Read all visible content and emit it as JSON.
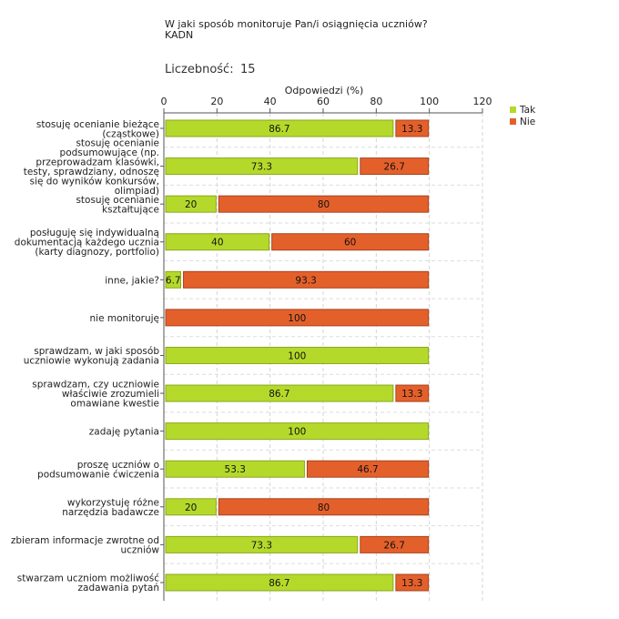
{
  "header": {
    "title_line1": "W jaki sposób monitoruje Pan/i osiągnięcia uczniów?",
    "title_line2": "KADN",
    "count_label": "Liczebność:",
    "count_value": "15"
  },
  "chart_data": {
    "type": "bar",
    "orientation": "horizontal",
    "stacked": true,
    "title": "W jaki sposób monitoruje Pan/i osiągnięcia uczniów?",
    "subtitle": "KADN",
    "xlabel": "Odpowiedzi (%)",
    "ylabel": "",
    "xlim": [
      0,
      120
    ],
    "xticks": [
      0,
      20,
      40,
      60,
      80,
      100,
      120
    ],
    "grid": true,
    "legend_position": "top-right",
    "categories": [
      [
        "stosuję ocenianie bieżące",
        "(cząstkowe)"
      ],
      [
        "stosuję ocenianie",
        "podsumowujące (np.",
        "przeprowadzam klasówki,",
        "testy, sprawdziany, odnoszę",
        "się do wyników konkursów,",
        "olimpiad)"
      ],
      [
        "stosuję ocenianie",
        "kształtujące"
      ],
      [
        "posługuję się indywidualną",
        "dokumentacją każdego ucznia",
        "(karty diagnozy, portfolio)"
      ],
      [
        "inne, jakie?"
      ],
      [
        "nie monitoruję"
      ],
      [
        "sprawdzam, w jaki sposób",
        "uczniowie wykonują zadania"
      ],
      [
        "sprawdzam, czy uczniowie",
        "właściwie zrozumieli",
        "omawiane kwestie"
      ],
      [
        "zadaję pytania"
      ],
      [
        "proszę uczniów o",
        "podsumowanie ćwiczenia"
      ],
      [
        "wykorzystuję różne",
        "narzędzia badawcze"
      ],
      [
        "zbieram informacje zwrotne od",
        "uczniów"
      ],
      [
        "stwarzam uczniom możliwość",
        "zadawania pytań"
      ]
    ],
    "series": [
      {
        "name": "Tak",
        "color": "#b5d92b",
        "border": "#8aa81c",
        "values": [
          86.7,
          73.3,
          20,
          40,
          6.7,
          0,
          100,
          86.7,
          100,
          53.3,
          20,
          73.3,
          86.7
        ],
        "labels": [
          "86.7",
          "73.3",
          "20",
          "40",
          "6.7",
          "",
          "100",
          "86.7",
          "100",
          "53.3",
          "20",
          "73.3",
          "86.7"
        ]
      },
      {
        "name": "Nie",
        "color": "#e4602b",
        "border": "#a8431d",
        "values": [
          13.3,
          26.7,
          80,
          60,
          93.3,
          100,
          0,
          13.3,
          0,
          46.7,
          80,
          26.7,
          13.3
        ],
        "labels": [
          "13.3",
          "26.7",
          "80",
          "60",
          "93.3",
          "100",
          "",
          "13.3",
          "",
          "46.7",
          "80",
          "26.7",
          "13.3"
        ]
      }
    ]
  }
}
